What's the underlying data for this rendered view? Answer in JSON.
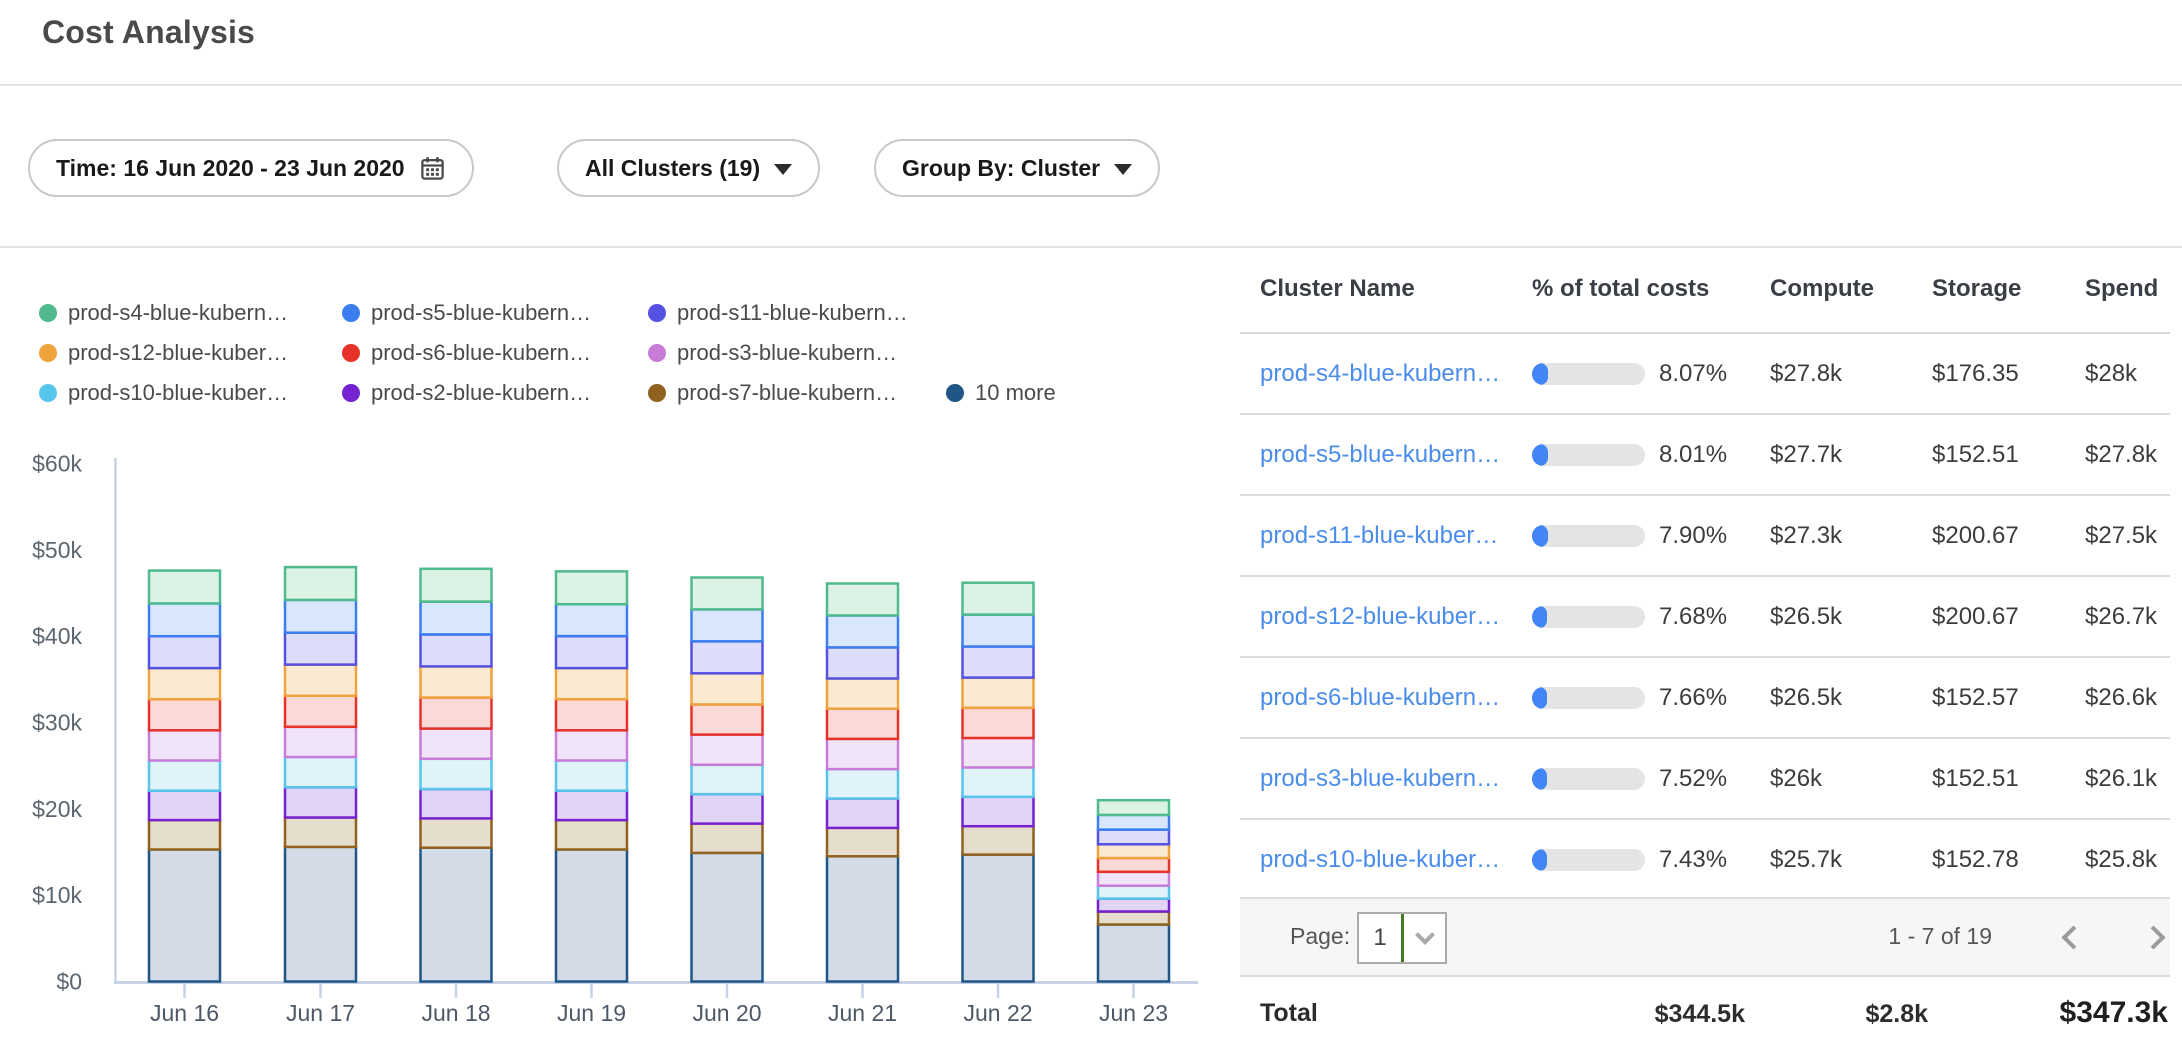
{
  "header": {
    "title": "Cost Analysis"
  },
  "filters": {
    "time_label": "Time: 16 Jun 2020 - 23 Jun 2020",
    "clusters_label": "All Clusters (19)",
    "group_by_label": "Group By: Cluster"
  },
  "chart_data": {
    "type": "bar",
    "stacked": true,
    "title": "",
    "xlabel": "",
    "ylabel": "",
    "x": [
      "Jun 16",
      "Jun 17",
      "Jun 18",
      "Jun 19",
      "Jun 20",
      "Jun 21",
      "Jun 22",
      "Jun 23"
    ],
    "unit": "thousand USD",
    "ylim": [
      0,
      60
    ],
    "ytick_values": [
      0,
      10,
      20,
      30,
      40,
      50,
      60
    ],
    "ytick_labels": [
      "$0",
      "$10k",
      "$20k",
      "$30k",
      "$40k",
      "$50k",
      "$60k"
    ],
    "grid": false,
    "legend_position": "top-left",
    "series_note": "values in $k per day, listed bottom-to-top of stack; legend shows reverse order",
    "series": [
      {
        "label": "10 more",
        "color": "#1f5687",
        "fill": "#d3dce6",
        "values": [
          15.3,
          15.6,
          15.5,
          15.3,
          14.9,
          14.5,
          14.7,
          6.6
        ]
      },
      {
        "label": "prod-s7-blue-kubern…",
        "color": "#91611f",
        "fill": "#e6decd",
        "values": [
          3.4,
          3.4,
          3.4,
          3.4,
          3.4,
          3.3,
          3.3,
          1.5
        ]
      },
      {
        "label": "prod-s2-blue-kubern…",
        "color": "#7523d1",
        "fill": "#e2d4f4",
        "values": [
          3.4,
          3.5,
          3.4,
          3.4,
          3.4,
          3.4,
          3.4,
          1.5
        ]
      },
      {
        "label": "prod-s10-blue-kuber…",
        "color": "#57c4ea",
        "fill": "#e0f3fb",
        "values": [
          3.5,
          3.5,
          3.5,
          3.5,
          3.4,
          3.4,
          3.4,
          1.5
        ]
      },
      {
        "label": "prod-s3-blue-kubern…",
        "color": "#c77cd8",
        "fill": "#f2e4f8",
        "values": [
          3.5,
          3.5,
          3.5,
          3.5,
          3.5,
          3.5,
          3.4,
          1.6
        ]
      },
      {
        "label": "prod-s6-blue-kubern…",
        "color": "#e63329",
        "fill": "#fad9d6",
        "values": [
          3.6,
          3.6,
          3.6,
          3.6,
          3.5,
          3.5,
          3.5,
          1.6
        ]
      },
      {
        "label": "prod-s12-blue-kuber…",
        "color": "#f0a33c",
        "fill": "#fbead2",
        "values": [
          3.6,
          3.6,
          3.6,
          3.6,
          3.6,
          3.5,
          3.5,
          1.6
        ]
      },
      {
        "label": "prod-s11-blue-kubern…",
        "color": "#5551e2",
        "fill": "#deddf9",
        "values": [
          3.7,
          3.7,
          3.7,
          3.7,
          3.7,
          3.6,
          3.6,
          1.7
        ]
      },
      {
        "label": "prod-s5-blue-kubern…",
        "color": "#3c7ef0",
        "fill": "#d8e7fc",
        "values": [
          3.8,
          3.8,
          3.8,
          3.7,
          3.7,
          3.7,
          3.7,
          1.7
        ]
      },
      {
        "label": "prod-s4-blue-kubern…",
        "color": "#4fba8b",
        "fill": "#dbf2e5",
        "values": [
          3.8,
          3.8,
          3.8,
          3.8,
          3.7,
          3.7,
          3.7,
          1.7
        ]
      }
    ]
  },
  "table": {
    "columns": [
      "Cluster Name",
      "% of total costs",
      "Compute",
      "Storage",
      "Spend"
    ],
    "rows": [
      {
        "name": "prod-s4-blue-kubern…",
        "pct": "8.07%",
        "compute": "$27.8k",
        "storage": "$176.35",
        "spend": "$28k"
      },
      {
        "name": "prod-s5-blue-kubern…",
        "pct": "8.01%",
        "compute": "$27.7k",
        "storage": "$152.51",
        "spend": "$27.8k"
      },
      {
        "name": "prod-s11-blue-kuber…",
        "pct": "7.90%",
        "compute": "$27.3k",
        "storage": "$200.67",
        "spend": "$27.5k"
      },
      {
        "name": "prod-s12-blue-kuber…",
        "pct": "7.68%",
        "compute": "$26.5k",
        "storage": "$200.67",
        "spend": "$26.7k"
      },
      {
        "name": "prod-s6-blue-kubern…",
        "pct": "7.66%",
        "compute": "$26.5k",
        "storage": "$152.57",
        "spend": "$26.6k"
      },
      {
        "name": "prod-s3-blue-kubern…",
        "pct": "7.52%",
        "compute": "$26k",
        "storage": "$152.51",
        "spend": "$26.1k"
      },
      {
        "name": "prod-s10-blue-kuber…",
        "pct": "7.43%",
        "compute": "$25.7k",
        "storage": "$152.78",
        "spend": "$25.8k"
      }
    ]
  },
  "pagination": {
    "page_label": "Page:",
    "current_page": "1",
    "range_label": "1 - 7 of 19"
  },
  "totals": {
    "label": "Total",
    "compute": "$344.5k",
    "storage": "$2.8k",
    "spend": "$347.3k"
  },
  "colors": {
    "accent_blue": "#4285f4",
    "link_blue": "#4a8ceb",
    "axis_line": "#c7d1e8",
    "pager_green": "#3f7d20"
  }
}
